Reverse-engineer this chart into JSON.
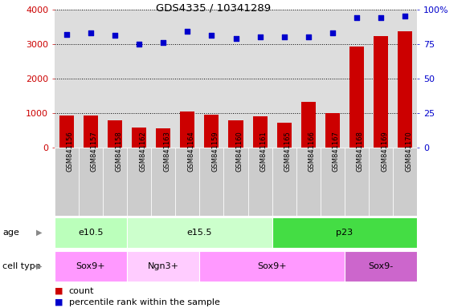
{
  "title": "GDS4335 / 10341289",
  "samples": [
    "GSM841156",
    "GSM841157",
    "GSM841158",
    "GSM841162",
    "GSM841163",
    "GSM841164",
    "GSM841159",
    "GSM841160",
    "GSM841161",
    "GSM841165",
    "GSM841166",
    "GSM841167",
    "GSM841168",
    "GSM841169",
    "GSM841170"
  ],
  "counts": [
    930,
    940,
    800,
    590,
    570,
    1040,
    960,
    790,
    920,
    720,
    1330,
    1010,
    2920,
    3230,
    3360
  ],
  "percentile_ranks": [
    82,
    83,
    81,
    75,
    76,
    84,
    81,
    79,
    80,
    80,
    80,
    83,
    94,
    94,
    95
  ],
  "ylim_left": [
    0,
    4000
  ],
  "ylim_right": [
    0,
    100
  ],
  "yticks_left": [
    0,
    1000,
    2000,
    3000,
    4000
  ],
  "yticks_right": [
    0,
    25,
    50,
    75,
    100
  ],
  "bar_color": "#cc0000",
  "scatter_color": "#0000cc",
  "age_groups": [
    {
      "label": "e10.5",
      "start": 0,
      "end": 3,
      "color": "#bbffbb"
    },
    {
      "label": "e15.5",
      "start": 3,
      "end": 9,
      "color": "#ccffcc"
    },
    {
      "label": "p23",
      "start": 9,
      "end": 15,
      "color": "#44dd44"
    }
  ],
  "cell_type_groups": [
    {
      "label": "Sox9+",
      "start": 0,
      "end": 3,
      "color": "#ff99ff"
    },
    {
      "label": "Ngn3+",
      "start": 3,
      "end": 6,
      "color": "#ffccff"
    },
    {
      "label": "Sox9+",
      "start": 6,
      "end": 12,
      "color": "#ff99ff"
    },
    {
      "label": "Sox9-",
      "start": 12,
      "end": 15,
      "color": "#cc66cc"
    }
  ],
  "legend_count_label": "count",
  "legend_pct_label": "percentile rank within the sample",
  "age_label": "age",
  "cell_type_label": "cell type",
  "background_color": "#ffffff",
  "plot_bg_color": "#dddddd",
  "label_bg_color": "#cccccc"
}
